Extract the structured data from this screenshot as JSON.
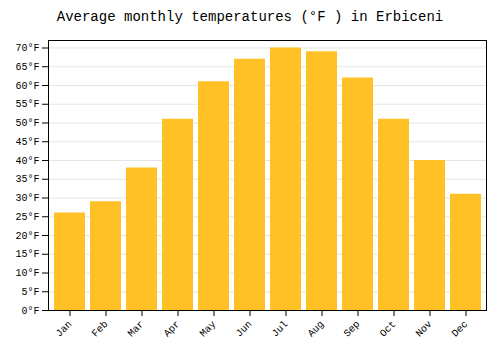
{
  "chart_data": {
    "type": "bar",
    "title": "Average monthly temperatures (°F ) in Erbiceni",
    "categories": [
      "Jan",
      "Feb",
      "Mar",
      "Apr",
      "May",
      "Jun",
      "Jul",
      "Aug",
      "Sep",
      "Oct",
      "Nov",
      "Dec"
    ],
    "values": [
      26,
      29,
      38,
      51,
      61,
      67,
      70,
      69,
      62,
      51,
      40,
      31
    ],
    "color": "#FFC125",
    "ylim": [
      0,
      72
    ],
    "yticks": [
      {
        "value": 0,
        "label": "0°F"
      },
      {
        "value": 5,
        "label": "5°F"
      },
      {
        "value": 10,
        "label": "10°F"
      },
      {
        "value": 15,
        "label": "15°F"
      },
      {
        "value": 20,
        "label": "20°F"
      },
      {
        "value": 25,
        "label": "25°F"
      },
      {
        "value": 30,
        "label": "30°F"
      },
      {
        "value": 35,
        "label": "35°F"
      },
      {
        "value": 40,
        "label": "40°F"
      },
      {
        "value": 45,
        "label": "45°F"
      },
      {
        "value": 50,
        "label": "50°F"
      },
      {
        "value": 55,
        "label": "55°F"
      },
      {
        "value": 60,
        "label": "60°F"
      },
      {
        "value": 65,
        "label": "65°F"
      },
      {
        "value": 70,
        "label": "70°F"
      }
    ],
    "grid": true
  }
}
